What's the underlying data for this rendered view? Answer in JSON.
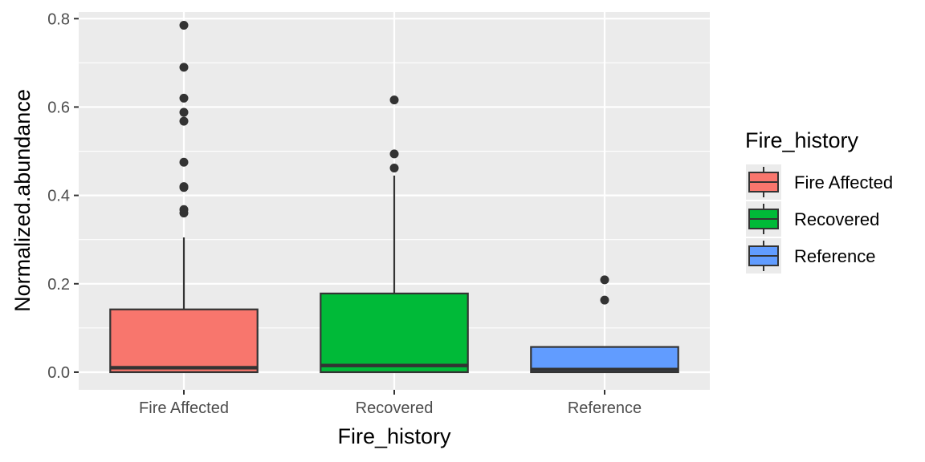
{
  "chart_data": {
    "type": "boxplot",
    "xlabel": "Fire_history",
    "ylabel": "Normalized.abundance",
    "categories": [
      "Fire Affected",
      "Recovered",
      "Reference"
    ],
    "ylim": [
      -0.04,
      0.815
    ],
    "yticks": [
      {
        "value": 0.0,
        "label": "0.0"
      },
      {
        "value": 0.2,
        "label": "0.2"
      },
      {
        "value": 0.4,
        "label": "0.4"
      },
      {
        "value": 0.6,
        "label": "0.6"
      },
      {
        "value": 0.8,
        "label": "0.8"
      }
    ],
    "grid": true,
    "legend": {
      "title": "Fire_history",
      "position": "right",
      "entries": [
        "Fire Affected",
        "Recovered",
        "Reference"
      ]
    },
    "boxes": [
      {
        "category": "Fire Affected",
        "color": "#F8766D",
        "whisker_low": 0.0,
        "q1": 0.0,
        "median": 0.01,
        "q3": 0.142,
        "whisker_high": 0.305,
        "outliers": [
          0.785,
          0.69,
          0.62,
          0.588,
          0.568,
          0.475,
          0.42,
          0.418,
          0.368,
          0.36
        ]
      },
      {
        "category": "Recovered",
        "color": "#00BA38",
        "whisker_low": 0.0,
        "q1": 0.0,
        "median": 0.015,
        "q3": 0.178,
        "whisker_high": 0.445,
        "outliers": [
          0.616,
          0.494,
          0.462
        ]
      },
      {
        "category": "Reference",
        "color": "#619CFF",
        "whisker_low": 0.0,
        "q1": 0.0,
        "median": 0.006,
        "q3": 0.057,
        "whisker_high": 0.057,
        "outliers": [
          0.209,
          0.163
        ]
      }
    ]
  }
}
